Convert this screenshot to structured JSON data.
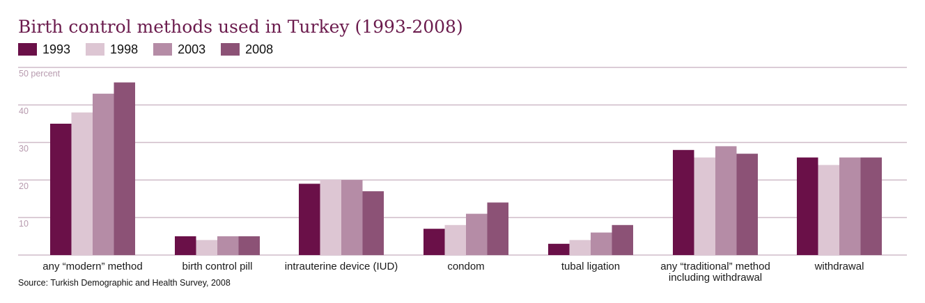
{
  "chart_data": {
    "type": "bar",
    "title": "Birth control methods used in Turkey (1993-2008)",
    "ylim": [
      0,
      50
    ],
    "yticks": [
      10,
      20,
      30,
      40,
      50
    ],
    "ytick_labels": [
      "10",
      "20",
      "30",
      "40",
      "50 percent"
    ],
    "grid": true,
    "legend_position": "top-left",
    "categories": [
      [
        "any “modern” method"
      ],
      [
        "birth control pill"
      ],
      [
        "intrauterine device (IUD)"
      ],
      [
        "condom"
      ],
      [
        "tubal ligation"
      ],
      [
        "any “traditional” method",
        "including withdrawal"
      ],
      [
        "withdrawal"
      ]
    ],
    "series": [
      {
        "name": "1993",
        "color": "#6a1048",
        "values": [
          35,
          5,
          19,
          7,
          3,
          28,
          26
        ]
      },
      {
        "name": "1998",
        "color": "#ddc6d3",
        "values": [
          38,
          4,
          20,
          8,
          4,
          26,
          24
        ]
      },
      {
        "name": "2003",
        "color": "#b58ca6",
        "values": [
          43,
          5,
          20,
          11,
          6,
          29,
          26
        ]
      },
      {
        "name": "2008",
        "color": "#8c5276",
        "values": [
          46,
          5,
          17,
          14,
          8,
          27,
          26
        ]
      }
    ],
    "source": "Source: Turkish Demographic and Health Survey, 2008",
    "colors": {
      "title": "#6a1a4c",
      "grid": "#b79aae",
      "tick_text": "#b79aae"
    }
  }
}
